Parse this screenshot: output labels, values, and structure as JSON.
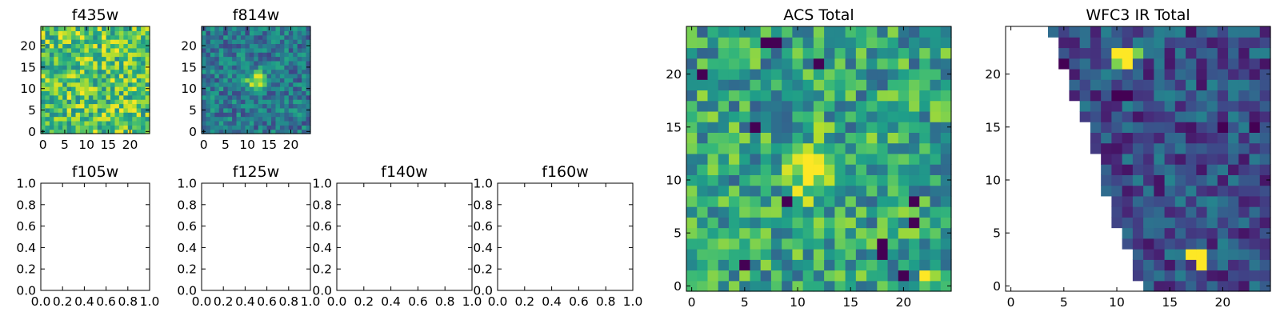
{
  "figure": {
    "colormap": [
      "#440154",
      "#482878",
      "#3e4989",
      "#31688e",
      "#26828e",
      "#1f9e89",
      "#35b779",
      "#6ece58",
      "#b5de2b",
      "#fde725"
    ],
    "empty_color": "#ffffff"
  },
  "chart_data": [
    {
      "type": "heatmap",
      "title": "f435w",
      "extent": [
        -0.5,
        24.5,
        -0.5,
        24.5
      ],
      "xticks": [
        0,
        5,
        10,
        15,
        20
      ],
      "yticks": [
        0,
        5,
        10,
        15,
        20
      ],
      "pattern": "noise",
      "noise_range": [
        0.45,
        1.0
      ],
      "source": null
    },
    {
      "type": "heatmap",
      "title": "f814w",
      "extent": [
        -0.5,
        24.5,
        -0.5,
        24.5
      ],
      "xticks": [
        0,
        5,
        10,
        15,
        20
      ],
      "yticks": [
        0,
        5,
        10,
        15,
        20
      ],
      "pattern": "noise",
      "noise_range": [
        0.2,
        0.6
      ],
      "source": {
        "x": 12,
        "y": 12,
        "sigma": 1.6,
        "peak": 0.55
      }
    },
    {
      "type": "empty",
      "title": "f105w",
      "xlim": [
        0,
        1
      ],
      "ylim": [
        0,
        1
      ],
      "xticks": [
        "0.0",
        "0.2",
        "0.4",
        "0.6",
        "0.8",
        "1.0"
      ],
      "yticks": [
        "0.0",
        "0.2",
        "0.4",
        "0.6",
        "0.8",
        "1.0"
      ]
    },
    {
      "type": "empty",
      "title": "f125w",
      "xlim": [
        0,
        1
      ],
      "ylim": [
        0,
        1
      ],
      "xticks": [
        "0.0",
        "0.2",
        "0.4",
        "0.6",
        "0.8",
        "1.0"
      ],
      "yticks": [
        "0.0",
        "0.2",
        "0.4",
        "0.6",
        "0.8",
        "1.0"
      ]
    },
    {
      "type": "empty",
      "title": "f140w",
      "xlim": [
        0,
        1
      ],
      "ylim": [
        0,
        1
      ],
      "xticks": [
        "0.0",
        "0.2",
        "0.4",
        "0.6",
        "0.8",
        "1.0"
      ],
      "yticks": [
        "0.0",
        "0.2",
        "0.4",
        "0.6",
        "0.8",
        "1.0"
      ]
    },
    {
      "type": "empty",
      "title": "f160w",
      "xlim": [
        0,
        1
      ],
      "ylim": [
        0,
        1
      ],
      "xticks": [
        "0.0",
        "0.2",
        "0.4",
        "0.6",
        "0.8",
        "1.0"
      ],
      "yticks": [
        "0.0",
        "0.2",
        "0.4",
        "0.6",
        "0.8",
        "1.0"
      ]
    },
    {
      "type": "heatmap",
      "title": "ACS Total",
      "extent": [
        -0.5,
        24.5,
        -0.5,
        24.5
      ],
      "xticks": [
        0,
        5,
        10,
        15,
        20
      ],
      "yticks": [
        0,
        5,
        10,
        15,
        20
      ],
      "pattern": "noise",
      "noise_range": [
        0.3,
        0.85
      ],
      "source": {
        "x": 12,
        "y": 11,
        "sigma": 1.8,
        "peak": 0.5
      },
      "dark_pixels": [
        [
          7,
          23
        ],
        [
          8,
          23
        ],
        [
          12,
          21
        ],
        [
          5,
          2
        ],
        [
          9,
          8
        ],
        [
          21,
          8
        ],
        [
          21,
          6
        ],
        [
          18,
          3
        ],
        [
          18,
          4
        ],
        [
          20,
          1
        ],
        [
          1,
          20
        ],
        [
          6,
          15
        ]
      ],
      "bright_pixels": [
        [
          22,
          1
        ]
      ]
    },
    {
      "type": "heatmap",
      "title": "WFC3 IR Total",
      "extent": [
        -0.5,
        24.5,
        -0.5,
        24.5
      ],
      "xticks": [
        0,
        5,
        10,
        15,
        20
      ],
      "yticks": [
        0,
        5,
        10,
        15,
        20
      ],
      "pattern": "noise",
      "noise_range": [
        0.05,
        0.45
      ],
      "masked_region": "left_wedge",
      "mask_edge": [
        [
          24,
          4
        ],
        [
          23,
          5
        ],
        [
          22,
          5
        ],
        [
          21,
          5
        ],
        [
          20,
          6
        ],
        [
          19,
          6
        ],
        [
          18,
          6
        ],
        [
          17,
          7
        ],
        [
          16,
          7
        ],
        [
          15,
          8
        ],
        [
          14,
          8
        ],
        [
          13,
          8
        ],
        [
          12,
          9
        ],
        [
          11,
          9
        ],
        [
          10,
          9
        ],
        [
          9,
          9
        ],
        [
          8,
          10
        ],
        [
          7,
          10
        ],
        [
          6,
          10
        ],
        [
          5,
          11
        ],
        [
          4,
          11
        ],
        [
          3,
          12
        ],
        [
          2,
          12
        ],
        [
          1,
          12
        ],
        [
          0,
          13
        ]
      ],
      "bright_pixels": [
        [
          10,
          22
        ],
        [
          11,
          22
        ],
        [
          11,
          21
        ],
        [
          17,
          3
        ],
        [
          18,
          3
        ],
        [
          18,
          2
        ]
      ],
      "medium_pixels": [
        [
          10,
          21
        ],
        [
          12,
          22
        ]
      ],
      "dark_pixels": [
        [
          5,
          21
        ],
        [
          10,
          18
        ],
        [
          11,
          18
        ],
        [
          20,
          15
        ],
        [
          23,
          15
        ]
      ]
    }
  ]
}
